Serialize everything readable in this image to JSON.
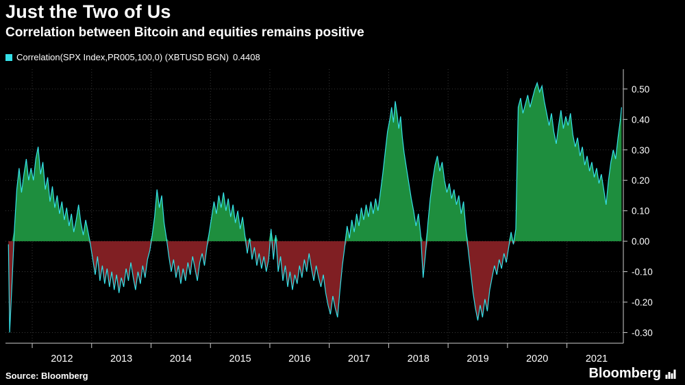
{
  "header": {
    "title": "Just the Two of Us",
    "subtitle": "Correlation between Bitcoin and equities remains positive"
  },
  "legend": {
    "swatch_color": "#35e0e8",
    "label": "Correlation(SPX Index,PR005,100,0) (XBTUSD BGN)",
    "value": "0.4408"
  },
  "footer": {
    "source": "Source: Bloomberg",
    "brand": "Bloomberg"
  },
  "chart_data": {
    "type": "area",
    "title": "Just the Two of Us",
    "subtitle": "Correlation between Bitcoin and equities remains positive",
    "series_name": "Correlation(SPX Index,PR005,100,0) (XBTUSD BGN)",
    "last_value": 0.4408,
    "grid": true,
    "legend_position": "top-left",
    "xlim": [
      2011.55,
      2021.95
    ],
    "ylim": [
      -0.335,
      0.565
    ],
    "xticks": [
      2012,
      2013,
      2014,
      2015,
      2016,
      2017,
      2018,
      2019,
      2020,
      2021
    ],
    "xtick_labels": [
      "2012",
      "2013",
      "2014",
      "2015",
      "2016",
      "2017",
      "2018",
      "2019",
      "2020",
      "2021"
    ],
    "yticks": [
      {
        "v": 0.5,
        "label": "0.50"
      },
      {
        "v": 0.4,
        "label": "0.40"
      },
      {
        "v": 0.3,
        "label": "0.30"
      },
      {
        "v": 0.2,
        "label": "0.20"
      },
      {
        "v": 0.1,
        "label": "0.10"
      },
      {
        "v": 0.0,
        "label": "0.00"
      },
      {
        "v": -0.1,
        "label": "-0.10"
      },
      {
        "v": -0.2,
        "label": "-0.20"
      },
      {
        "v": -0.3,
        "label": "-0.30"
      }
    ],
    "colors": {
      "line": "#35e0e8",
      "positive_fill": "#1e8e3e",
      "negative_fill": "#801f23",
      "grid": "#3a3a3a",
      "axis": "#cfcfcf",
      "text": "#ffffff",
      "background": "#000000"
    },
    "points": [
      [
        2011.6,
        -0.01
      ],
      [
        2011.62,
        -0.3
      ],
      [
        2011.66,
        -0.14
      ],
      [
        2011.7,
        0.04
      ],
      [
        2011.74,
        0.17
      ],
      [
        2011.78,
        0.24
      ],
      [
        2011.82,
        0.16
      ],
      [
        2011.86,
        0.22
      ],
      [
        2011.9,
        0.27
      ],
      [
        2011.94,
        0.2
      ],
      [
        2011.98,
        0.24
      ],
      [
        2012.02,
        0.2
      ],
      [
        2012.06,
        0.27
      ],
      [
        2012.1,
        0.31
      ],
      [
        2012.14,
        0.22
      ],
      [
        2012.18,
        0.26
      ],
      [
        2012.22,
        0.17
      ],
      [
        2012.26,
        0.21
      ],
      [
        2012.3,
        0.13
      ],
      [
        2012.34,
        0.18
      ],
      [
        2012.38,
        0.11
      ],
      [
        2012.42,
        0.15
      ],
      [
        2012.46,
        0.09
      ],
      [
        2012.5,
        0.13
      ],
      [
        2012.54,
        0.07
      ],
      [
        2012.58,
        0.11
      ],
      [
        2012.62,
        0.05
      ],
      [
        2012.66,
        0.09
      ],
      [
        2012.7,
        0.03
      ],
      [
        2012.74,
        0.07
      ],
      [
        2012.78,
        0.12
      ],
      [
        2012.82,
        0.06
      ],
      [
        2012.86,
        0.02
      ],
      [
        2012.9,
        0.07
      ],
      [
        2012.94,
        0.03
      ],
      [
        2012.98,
        -0.01
      ],
      [
        2013.02,
        -0.06
      ],
      [
        2013.06,
        -0.11
      ],
      [
        2013.1,
        -0.05
      ],
      [
        2013.14,
        -0.13
      ],
      [
        2013.18,
        -0.08
      ],
      [
        2013.22,
        -0.14
      ],
      [
        2013.26,
        -0.09
      ],
      [
        2013.3,
        -0.15
      ],
      [
        2013.34,
        -0.1
      ],
      [
        2013.38,
        -0.16
      ],
      [
        2013.42,
        -0.11
      ],
      [
        2013.46,
        -0.17
      ],
      [
        2013.5,
        -0.12
      ],
      [
        2013.54,
        -0.15
      ],
      [
        2013.58,
        -0.09
      ],
      [
        2013.62,
        -0.13
      ],
      [
        2013.66,
        -0.07
      ],
      [
        2013.7,
        -0.12
      ],
      [
        2013.74,
        -0.16
      ],
      [
        2013.78,
        -0.1
      ],
      [
        2013.82,
        -0.14
      ],
      [
        2013.86,
        -0.08
      ],
      [
        2013.9,
        -0.12
      ],
      [
        2013.94,
        -0.06
      ],
      [
        2013.98,
        -0.03
      ],
      [
        2014.02,
        0.02
      ],
      [
        2014.06,
        0.08
      ],
      [
        2014.1,
        0.17
      ],
      [
        2014.14,
        0.11
      ],
      [
        2014.18,
        0.15
      ],
      [
        2014.22,
        0.06
      ],
      [
        2014.26,
        0.01
      ],
      [
        2014.3,
        -0.05
      ],
      [
        2014.34,
        -0.1
      ],
      [
        2014.38,
        -0.06
      ],
      [
        2014.42,
        -0.12
      ],
      [
        2014.46,
        -0.08
      ],
      [
        2014.5,
        -0.14
      ],
      [
        2014.54,
        -0.09
      ],
      [
        2014.58,
        -0.13
      ],
      [
        2014.62,
        -0.07
      ],
      [
        2014.66,
        -0.11
      ],
      [
        2014.7,
        -0.05
      ],
      [
        2014.74,
        -0.09
      ],
      [
        2014.78,
        -0.13
      ],
      [
        2014.82,
        -0.07
      ],
      [
        2014.86,
        -0.04
      ],
      [
        2014.9,
        -0.08
      ],
      [
        2014.94,
        -0.02
      ],
      [
        2014.98,
        0.03
      ],
      [
        2015.02,
        0.08
      ],
      [
        2015.06,
        0.13
      ],
      [
        2015.1,
        0.09
      ],
      [
        2015.14,
        0.15
      ],
      [
        2015.18,
        0.11
      ],
      [
        2015.22,
        0.16
      ],
      [
        2015.26,
        0.1
      ],
      [
        2015.3,
        0.14
      ],
      [
        2015.34,
        0.08
      ],
      [
        2015.38,
        0.12
      ],
      [
        2015.42,
        0.06
      ],
      [
        2015.46,
        0.1
      ],
      [
        2015.5,
        0.04
      ],
      [
        2015.54,
        0.08
      ],
      [
        2015.58,
        0.02
      ],
      [
        2015.62,
        -0.04
      ],
      [
        2015.66,
        0.01
      ],
      [
        2015.7,
        -0.06
      ],
      [
        2015.74,
        -0.02
      ],
      [
        2015.78,
        -0.08
      ],
      [
        2015.82,
        -0.04
      ],
      [
        2015.86,
        -0.09
      ],
      [
        2015.9,
        -0.05
      ],
      [
        2015.94,
        -0.1
      ],
      [
        2015.98,
        -0.06
      ],
      [
        2016.02,
        0.04
      ],
      [
        2016.06,
        -0.06
      ],
      [
        2016.1,
        0.02
      ],
      [
        2016.14,
        -0.1
      ],
      [
        2016.18,
        -0.05
      ],
      [
        2016.22,
        -0.13
      ],
      [
        2016.26,
        -0.08
      ],
      [
        2016.3,
        -0.15
      ],
      [
        2016.34,
        -0.1
      ],
      [
        2016.38,
        -0.16
      ],
      [
        2016.42,
        -0.11
      ],
      [
        2016.46,
        -0.14
      ],
      [
        2016.5,
        -0.08
      ],
      [
        2016.54,
        -0.12
      ],
      [
        2016.58,
        -0.06
      ],
      [
        2016.62,
        -0.1
      ],
      [
        2016.66,
        -0.04
      ],
      [
        2016.7,
        -0.09
      ],
      [
        2016.74,
        -0.13
      ],
      [
        2016.78,
        -0.08
      ],
      [
        2016.82,
        -0.12
      ],
      [
        2016.86,
        -0.15
      ],
      [
        2016.9,
        -0.11
      ],
      [
        2016.94,
        -0.17
      ],
      [
        2016.98,
        -0.21
      ],
      [
        2017.02,
        -0.24
      ],
      [
        2017.06,
        -0.18
      ],
      [
        2017.1,
        -0.22
      ],
      [
        2017.14,
        -0.25
      ],
      [
        2017.18,
        -0.16
      ],
      [
        2017.22,
        -0.08
      ],
      [
        2017.26,
        -0.02
      ],
      [
        2017.3,
        0.05
      ],
      [
        2017.34,
        0.01
      ],
      [
        2017.38,
        0.07
      ],
      [
        2017.42,
        0.03
      ],
      [
        2017.46,
        0.09
      ],
      [
        2017.5,
        0.05
      ],
      [
        2017.54,
        0.11
      ],
      [
        2017.58,
        0.07
      ],
      [
        2017.62,
        0.12
      ],
      [
        2017.66,
        0.08
      ],
      [
        2017.7,
        0.13
      ],
      [
        2017.74,
        0.09
      ],
      [
        2017.78,
        0.14
      ],
      [
        2017.82,
        0.1
      ],
      [
        2017.86,
        0.16
      ],
      [
        2017.9,
        0.22
      ],
      [
        2017.94,
        0.29
      ],
      [
        2017.98,
        0.36
      ],
      [
        2018.02,
        0.4
      ],
      [
        2018.05,
        0.44
      ],
      [
        2018.08,
        0.39
      ],
      [
        2018.11,
        0.46
      ],
      [
        2018.14,
        0.42
      ],
      [
        2018.17,
        0.37
      ],
      [
        2018.2,
        0.41
      ],
      [
        2018.23,
        0.34
      ],
      [
        2018.26,
        0.29
      ],
      [
        2018.3,
        0.24
      ],
      [
        2018.34,
        0.19
      ],
      [
        2018.38,
        0.14
      ],
      [
        2018.42,
        0.1
      ],
      [
        2018.46,
        0.05
      ],
      [
        2018.5,
        0.09
      ],
      [
        2018.54,
        0.02
      ],
      [
        2018.58,
        -0.12
      ],
      [
        2018.62,
        -0.04
      ],
      [
        2018.66,
        0.06
      ],
      [
        2018.7,
        0.14
      ],
      [
        2018.74,
        0.2
      ],
      [
        2018.78,
        0.25
      ],
      [
        2018.82,
        0.28
      ],
      [
        2018.86,
        0.23
      ],
      [
        2018.9,
        0.26
      ],
      [
        2018.94,
        0.2
      ],
      [
        2018.98,
        0.16
      ],
      [
        2019.02,
        0.19
      ],
      [
        2019.06,
        0.14
      ],
      [
        2019.1,
        0.17
      ],
      [
        2019.14,
        0.12
      ],
      [
        2019.18,
        0.15
      ],
      [
        2019.22,
        0.09
      ],
      [
        2019.26,
        0.13
      ],
      [
        2019.3,
        0.04
      ],
      [
        2019.34,
        -0.03
      ],
      [
        2019.38,
        -0.1
      ],
      [
        2019.42,
        -0.17
      ],
      [
        2019.46,
        -0.22
      ],
      [
        2019.5,
        -0.26
      ],
      [
        2019.54,
        -0.21
      ],
      [
        2019.58,
        -0.25
      ],
      [
        2019.62,
        -0.19
      ],
      [
        2019.66,
        -0.23
      ],
      [
        2019.7,
        -0.16
      ],
      [
        2019.74,
        -0.12
      ],
      [
        2019.78,
        -0.08
      ],
      [
        2019.82,
        -0.11
      ],
      [
        2019.86,
        -0.06
      ],
      [
        2019.9,
        -0.09
      ],
      [
        2019.94,
        -0.04
      ],
      [
        2019.98,
        -0.07
      ],
      [
        2020.02,
        -0.02
      ],
      [
        2020.06,
        0.03
      ],
      [
        2020.1,
        -0.01
      ],
      [
        2020.14,
        0.04
      ],
      [
        2020.18,
        0.44
      ],
      [
        2020.22,
        0.47
      ],
      [
        2020.26,
        0.42
      ],
      [
        2020.3,
        0.45
      ],
      [
        2020.34,
        0.48
      ],
      [
        2020.38,
        0.44
      ],
      [
        2020.42,
        0.47
      ],
      [
        2020.46,
        0.5
      ],
      [
        2020.5,
        0.52
      ],
      [
        2020.54,
        0.49
      ],
      [
        2020.58,
        0.51
      ],
      [
        2020.62,
        0.46
      ],
      [
        2020.66,
        0.42
      ],
      [
        2020.7,
        0.38
      ],
      [
        2020.74,
        0.42
      ],
      [
        2020.78,
        0.36
      ],
      [
        2020.82,
        0.32
      ],
      [
        2020.86,
        0.38
      ],
      [
        2020.9,
        0.43
      ],
      [
        2020.94,
        0.37
      ],
      [
        2020.98,
        0.41
      ],
      [
        2021.02,
        0.38
      ],
      [
        2021.06,
        0.42
      ],
      [
        2021.1,
        0.35
      ],
      [
        2021.14,
        0.31
      ],
      [
        2021.18,
        0.34
      ],
      [
        2021.22,
        0.28
      ],
      [
        2021.26,
        0.31
      ],
      [
        2021.3,
        0.25
      ],
      [
        2021.34,
        0.28
      ],
      [
        2021.38,
        0.23
      ],
      [
        2021.42,
        0.26
      ],
      [
        2021.46,
        0.21
      ],
      [
        2021.5,
        0.24
      ],
      [
        2021.54,
        0.19
      ],
      [
        2021.58,
        0.22
      ],
      [
        2021.62,
        0.17
      ],
      [
        2021.66,
        0.12
      ],
      [
        2021.7,
        0.2
      ],
      [
        2021.74,
        0.26
      ],
      [
        2021.78,
        0.3
      ],
      [
        2021.82,
        0.27
      ],
      [
        2021.86,
        0.34
      ],
      [
        2021.9,
        0.4
      ],
      [
        2021.92,
        0.44
      ]
    ]
  }
}
